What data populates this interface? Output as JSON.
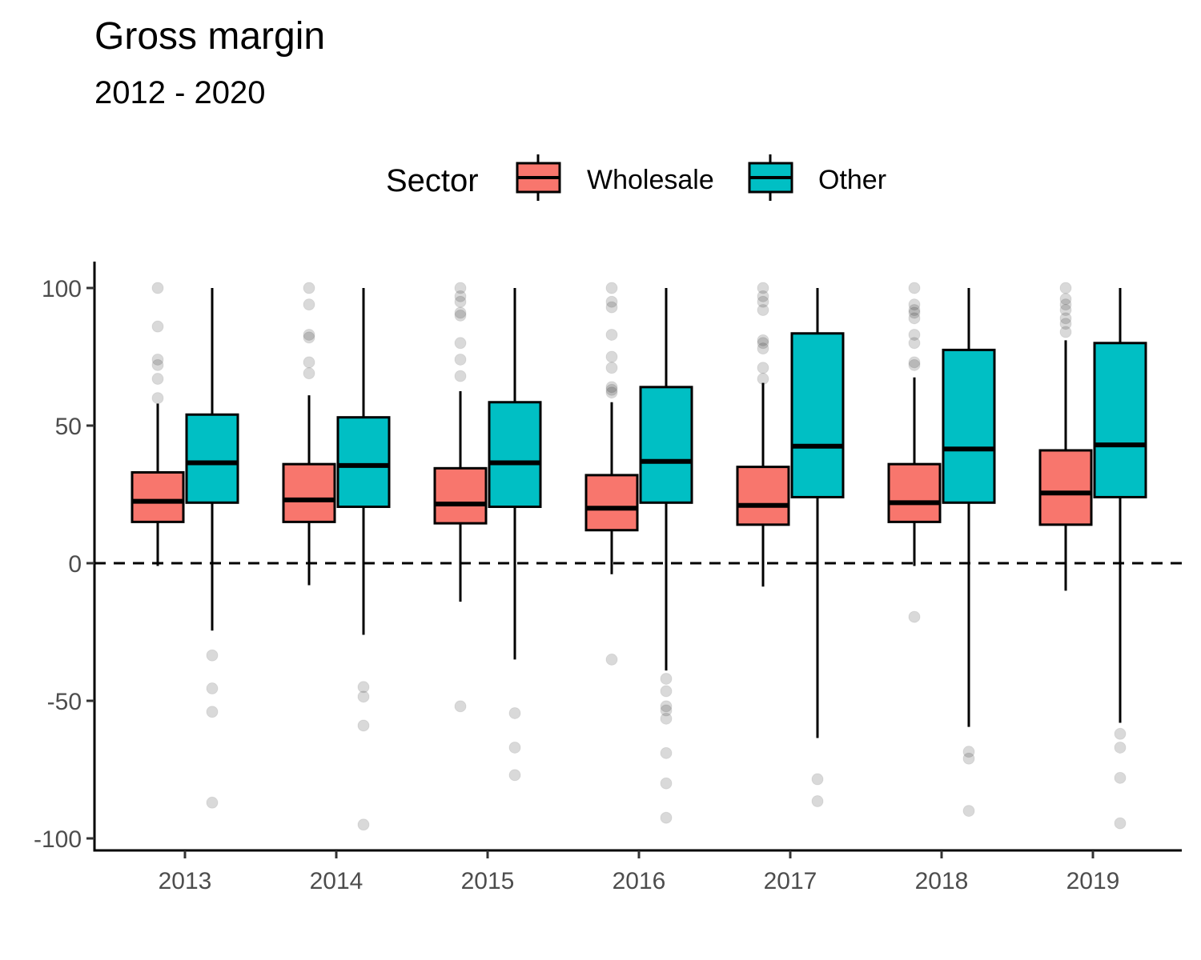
{
  "title": "Gross margin",
  "subtitle": "2012 - 2020",
  "legend": {
    "title": "Sector",
    "items": [
      {
        "label": "Wholesale",
        "color": "#F8766D"
      },
      {
        "label": "Other",
        "color": "#00BFC4"
      }
    ]
  },
  "chart_data": {
    "type": "boxplot",
    "title": "Gross margin",
    "subtitle": "2012 - 2020",
    "xlabel": "",
    "ylabel": "",
    "ylim": [
      -105,
      110
    ],
    "yticks": [
      100,
      50,
      0,
      -50,
      -100
    ],
    "categories": [
      "2013",
      "2014",
      "2015",
      "2016",
      "2017",
      "2018",
      "2019"
    ],
    "reference_line": {
      "y": 0,
      "style": "dashed"
    },
    "grid": false,
    "legend_position": "top",
    "series": [
      {
        "name": "Wholesale",
        "color": "#F8766D",
        "boxes": [
          {
            "q1": 15,
            "median": 22.5,
            "q3": 33,
            "low": -1,
            "high": 58,
            "outliers": [
              100,
              86,
              74,
              72,
              67,
              60
            ]
          },
          {
            "q1": 15,
            "median": 23,
            "q3": 36,
            "low": -8,
            "high": 61,
            "outliers": [
              100,
              94,
              83,
              82,
              73,
              69
            ]
          },
          {
            "q1": 14.5,
            "median": 21.5,
            "q3": 34.5,
            "low": -14,
            "high": 62.5,
            "outliers": [
              100,
              97,
              95,
              91,
              90,
              80,
              74,
              68,
              -52
            ]
          },
          {
            "q1": 12,
            "median": 20,
            "q3": 32,
            "low": -4,
            "high": 58.5,
            "outliers": [
              100,
              95,
              93,
              83,
              75,
              71,
              64,
              63,
              62,
              -35
            ]
          },
          {
            "q1": 14,
            "median": 21,
            "q3": 35,
            "low": -8.5,
            "high": 65.5,
            "outliers": [
              100,
              97,
              95,
              92,
              81,
              80,
              78,
              71,
              67
            ]
          },
          {
            "q1": 15,
            "median": 22,
            "q3": 36,
            "low": -1,
            "high": 67.5,
            "outliers": [
              100,
              94,
              92,
              91,
              89,
              83,
              80,
              73,
              72,
              -19.5
            ]
          },
          {
            "q1": 14,
            "median": 25.5,
            "q3": 41,
            "low": -10,
            "high": 81,
            "outliers": [
              100,
              96,
              94,
              92,
              89,
              87,
              84
            ]
          }
        ]
      },
      {
        "name": "Other",
        "color": "#00BFC4",
        "boxes": [
          {
            "q1": 22,
            "median": 36.5,
            "q3": 54,
            "low": -24.5,
            "high": 100,
            "outliers": [
              -33.5,
              -45.5,
              -54,
              -87
            ]
          },
          {
            "q1": 20.5,
            "median": 35.5,
            "q3": 53,
            "low": -26,
            "high": 100,
            "outliers": [
              -45,
              -48.5,
              -59,
              -95
            ]
          },
          {
            "q1": 20.5,
            "median": 36.5,
            "q3": 58.5,
            "low": -35,
            "high": 100,
            "outliers": [
              -54.5,
              -67,
              -77
            ]
          },
          {
            "q1": 22,
            "median": 37,
            "q3": 64,
            "low": -39,
            "high": 100,
            "outliers": [
              -42,
              -46.5,
              -52,
              -53.5,
              -56.5,
              -69,
              -80,
              -92.5
            ]
          },
          {
            "q1": 24,
            "median": 42.5,
            "q3": 83.5,
            "low": -63.5,
            "high": 100,
            "outliers": [
              -78.5,
              -86.5
            ]
          },
          {
            "q1": 22,
            "median": 41.5,
            "q3": 77.5,
            "low": -59.5,
            "high": 100,
            "outliers": [
              -68.5,
              -71,
              -90
            ]
          },
          {
            "q1": 24,
            "median": 43,
            "q3": 80,
            "low": -58,
            "high": 100,
            "outliers": [
              -62,
              -67,
              -78,
              -94.5
            ]
          }
        ]
      }
    ]
  }
}
